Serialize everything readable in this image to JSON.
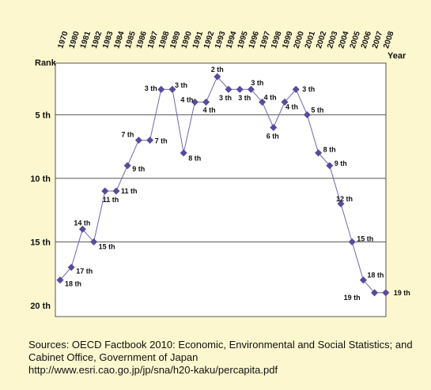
{
  "chart_data": {
    "type": "line",
    "xlabel": "Year",
    "ylabel": "Rank",
    "x": [
      "1970",
      "1980",
      "1981",
      "1982",
      "1983",
      "1984",
      "1985",
      "1986",
      "1987",
      "1988",
      "1989",
      "1990",
      "1991",
      "1992",
      "1993",
      "1994",
      "1995",
      "1996",
      "1997",
      "1998",
      "1999",
      "2000",
      "2001",
      "2002",
      "2003",
      "2004",
      "2005",
      "2006",
      "2007",
      "2008"
    ],
    "ylim": [
      20,
      1
    ],
    "yticks": [
      5,
      10,
      15,
      20
    ],
    "ytick_labels": [
      "5 th",
      "10 th",
      "15 th",
      "20 th"
    ],
    "grid": "horizontal",
    "series": [
      {
        "color": "#5a4a9a",
        "points": [
          {
            "x": "1970",
            "y": 18,
            "label": "18 th"
          },
          {
            "x": "1980",
            "y": 17,
            "label": "17 th"
          },
          {
            "x": "1981",
            "y": 14,
            "label": "14 th"
          },
          {
            "x": "1982",
            "y": 15,
            "label": "15 th"
          },
          {
            "x": "1983",
            "y": 11,
            "label": "11 th"
          },
          {
            "x": "1984",
            "y": 11,
            "label": "11 th"
          },
          {
            "x": "1985",
            "y": 9,
            "label": "9 th"
          },
          {
            "x": "1986",
            "y": 7,
            "label": "7 th"
          },
          {
            "x": "1987",
            "y": 7,
            "label": "7 th"
          },
          {
            "x": "1988",
            "y": 3,
            "label": "3 th"
          },
          {
            "x": "1989",
            "y": 3,
            "label": "3 th"
          },
          {
            "x": "1990",
            "y": 8,
            "label": "8 th"
          },
          {
            "x": "1991",
            "y": 4,
            "label": "4 th"
          },
          {
            "x": "1992",
            "y": 4,
            "label": "4 th"
          },
          {
            "x": "1993",
            "y": 2,
            "label": "2 th"
          },
          {
            "x": "1994",
            "y": 3,
            "label": "3 th"
          },
          {
            "x": "1995",
            "y": 3,
            "label": "3 th"
          },
          {
            "x": "1996",
            "y": 3,
            "label": "3 th"
          },
          {
            "x": "1997",
            "y": 4,
            "label": "4 th"
          },
          {
            "x": "1998",
            "y": 6,
            "label": "6 th"
          },
          {
            "x": "1999",
            "y": 4,
            "label": "4 th"
          },
          {
            "x": "2000",
            "y": 3,
            "label": "3 th"
          },
          {
            "x": "2001",
            "y": 5,
            "label": "5 th"
          },
          {
            "x": "2002",
            "y": 8,
            "label": "8 th"
          },
          {
            "x": "2003",
            "y": 9,
            "label": "9 th"
          },
          {
            "x": "2004",
            "y": 12,
            "label": "12 th"
          },
          {
            "x": "2005",
            "y": 15,
            "label": "15 th"
          },
          {
            "x": "2006",
            "y": 18,
            "label": "18 th"
          },
          {
            "x": "2007",
            "y": 19,
            "label": "19 th"
          },
          {
            "x": "2008",
            "y": 19,
            "label": "19 th"
          }
        ]
      }
    ]
  },
  "source": {
    "line1": "Sources: OECD Factbook 2010: Economic, Environmental and Social Statistics; and",
    "line2": "Cabinet Office, Government of Japan",
    "line3": "http://www.esri.cao.go.jp/jp/sna/h20-kaku/percapita.pdf"
  },
  "colors": {
    "background": "#fdf7cf",
    "plot_background": "#ffffff",
    "marker": "#5a4a9a",
    "line": "#6f67b0",
    "grid": "#555555"
  }
}
